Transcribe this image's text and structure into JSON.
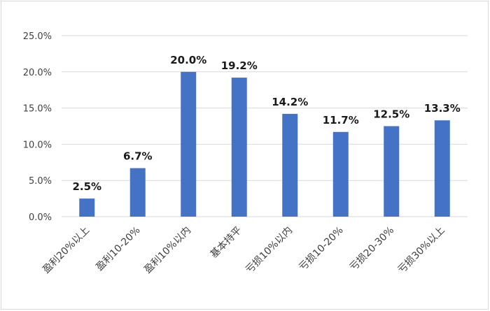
{
  "chart_data": {
    "type": "bar",
    "categories": [
      "盈利20%以上",
      "盈利10-20%",
      "盈利10%以内",
      "基本持平",
      "亏损10%以内",
      "亏损10-20%",
      "亏损20-30%",
      "亏损30%以上"
    ],
    "values": [
      2.5,
      6.7,
      20.0,
      19.2,
      14.2,
      11.7,
      12.5,
      13.3
    ],
    "data_labels": [
      "2.5%",
      "6.7%",
      "20.0%",
      "19.2%",
      "14.2%",
      "11.7%",
      "12.5%",
      "13.3%"
    ],
    "y_ticks": [
      {
        "value": 0,
        "label": "0.0%"
      },
      {
        "value": 5,
        "label": "5.0%"
      },
      {
        "value": 10,
        "label": "10.0%"
      },
      {
        "value": 15,
        "label": "15.0%"
      },
      {
        "value": 20,
        "label": "20.0%"
      },
      {
        "value": 25,
        "label": "25.0%"
      }
    ],
    "ylim": [
      0,
      25
    ],
    "title": "",
    "xlabel": "",
    "ylabel": "",
    "grid": "horizontal",
    "legend": "none",
    "bar_color": "#4472c4",
    "grid_color": "#d9d9d9"
  }
}
